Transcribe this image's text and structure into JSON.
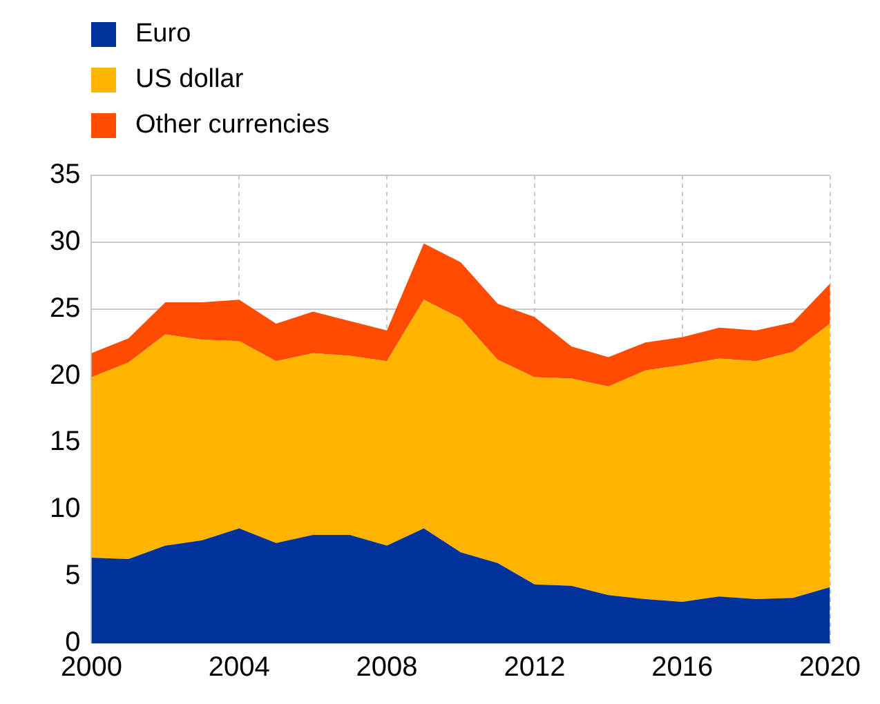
{
  "chart_data": {
    "type": "area",
    "stacked": true,
    "x": [
      2000,
      2001,
      2002,
      2003,
      2004,
      2005,
      2006,
      2007,
      2008,
      2009,
      2010,
      2011,
      2012,
      2013,
      2014,
      2015,
      2016,
      2017,
      2018,
      2019,
      2020
    ],
    "series": [
      {
        "name": "Euro",
        "color": "#003299",
        "values": [
          6.4,
          6.3,
          7.3,
          7.7,
          8.6,
          7.5,
          8.1,
          8.1,
          7.3,
          8.6,
          6.8,
          6.0,
          4.4,
          4.3,
          3.6,
          3.3,
          3.1,
          3.5,
          3.3,
          3.4,
          4.2
        ]
      },
      {
        "name": "US dollar",
        "color": "#ffb400",
        "values": [
          13.5,
          14.7,
          15.8,
          15.0,
          14.0,
          13.6,
          13.6,
          13.4,
          13.8,
          17.1,
          17.5,
          15.2,
          15.5,
          15.5,
          15.6,
          17.1,
          17.7,
          17.8,
          17.8,
          18.4,
          19.7
        ]
      },
      {
        "name": "Other currencies",
        "color": "#ff4b00",
        "values": [
          1.8,
          1.8,
          2.4,
          2.8,
          3.1,
          2.8,
          3.1,
          2.6,
          2.3,
          4.2,
          4.2,
          4.2,
          4.5,
          2.4,
          2.2,
          2.1,
          2.1,
          2.3,
          2.3,
          2.2,
          3.0
        ]
      }
    ],
    "xlim": [
      2000,
      2020
    ],
    "xticks": [
      2000,
      2004,
      2008,
      2012,
      2016,
      2020
    ],
    "ylim": [
      0,
      35
    ],
    "yticks": [
      0,
      5,
      10,
      15,
      20,
      25,
      30,
      35
    ],
    "grid": true,
    "legend": "top left"
  }
}
